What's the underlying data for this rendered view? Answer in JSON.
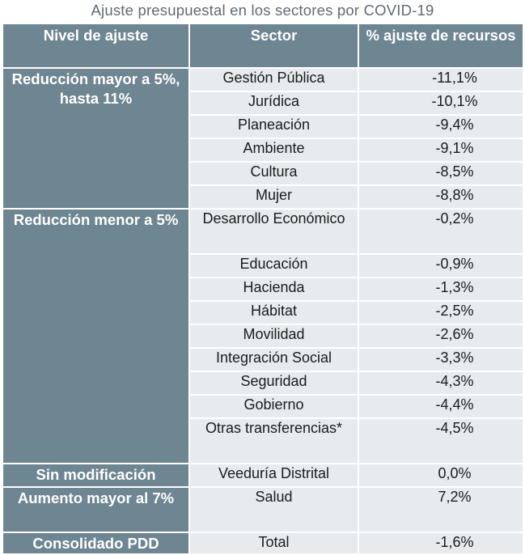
{
  "title": "Ajuste presupuestal en los sectores por COVID-19",
  "headers": [
    "Nivel de ajuste",
    "Sector",
    "% ajuste de recursos"
  ],
  "groups": [
    {
      "level": "Reducción mayor a 5%, hasta 11%",
      "rows": [
        {
          "sector": "Gestión Pública",
          "value": "-11,1%"
        },
        {
          "sector": "Jurídica",
          "value": "-10,1%"
        },
        {
          "sector": "Planeación",
          "value": "-9,4%"
        },
        {
          "sector": "Ambiente",
          "value": "-9,1%"
        },
        {
          "sector": "Cultura",
          "value": "-8,5%"
        },
        {
          "sector": "Mujer",
          "value": "-8,8%"
        }
      ]
    },
    {
      "level": "Reducción menor a 5%",
      "rows": [
        {
          "sector": "Desarrollo Económico",
          "value": "-0,2%"
        },
        {
          "sector": "Educación",
          "value": "-0,9%"
        },
        {
          "sector": "Hacienda",
          "value": "-1,3%"
        },
        {
          "sector": "Hábitat",
          "value": "-2,5%"
        },
        {
          "sector": "Movilidad",
          "value": "-2,6%"
        },
        {
          "sector": "Integración Social",
          "value": "-3,3%"
        },
        {
          "sector": "Seguridad",
          "value": "-4,3%"
        },
        {
          "sector": "Gobierno",
          "value": "-4,4%"
        },
        {
          "sector": "Otras transferencias*",
          "value": "-4,5%"
        }
      ]
    },
    {
      "level": "Sin modificación",
      "rows": [
        {
          "sector": "Veeduría Distrital",
          "value": "0,0%"
        }
      ]
    },
    {
      "level": "Aumento mayor al 7%",
      "rows": [
        {
          "sector": "Salud",
          "value": "7,2%"
        }
      ]
    },
    {
      "level": "Consolidado PDD",
      "rows": [
        {
          "sector": "Total",
          "value": "-1,6%"
        }
      ]
    }
  ]
}
